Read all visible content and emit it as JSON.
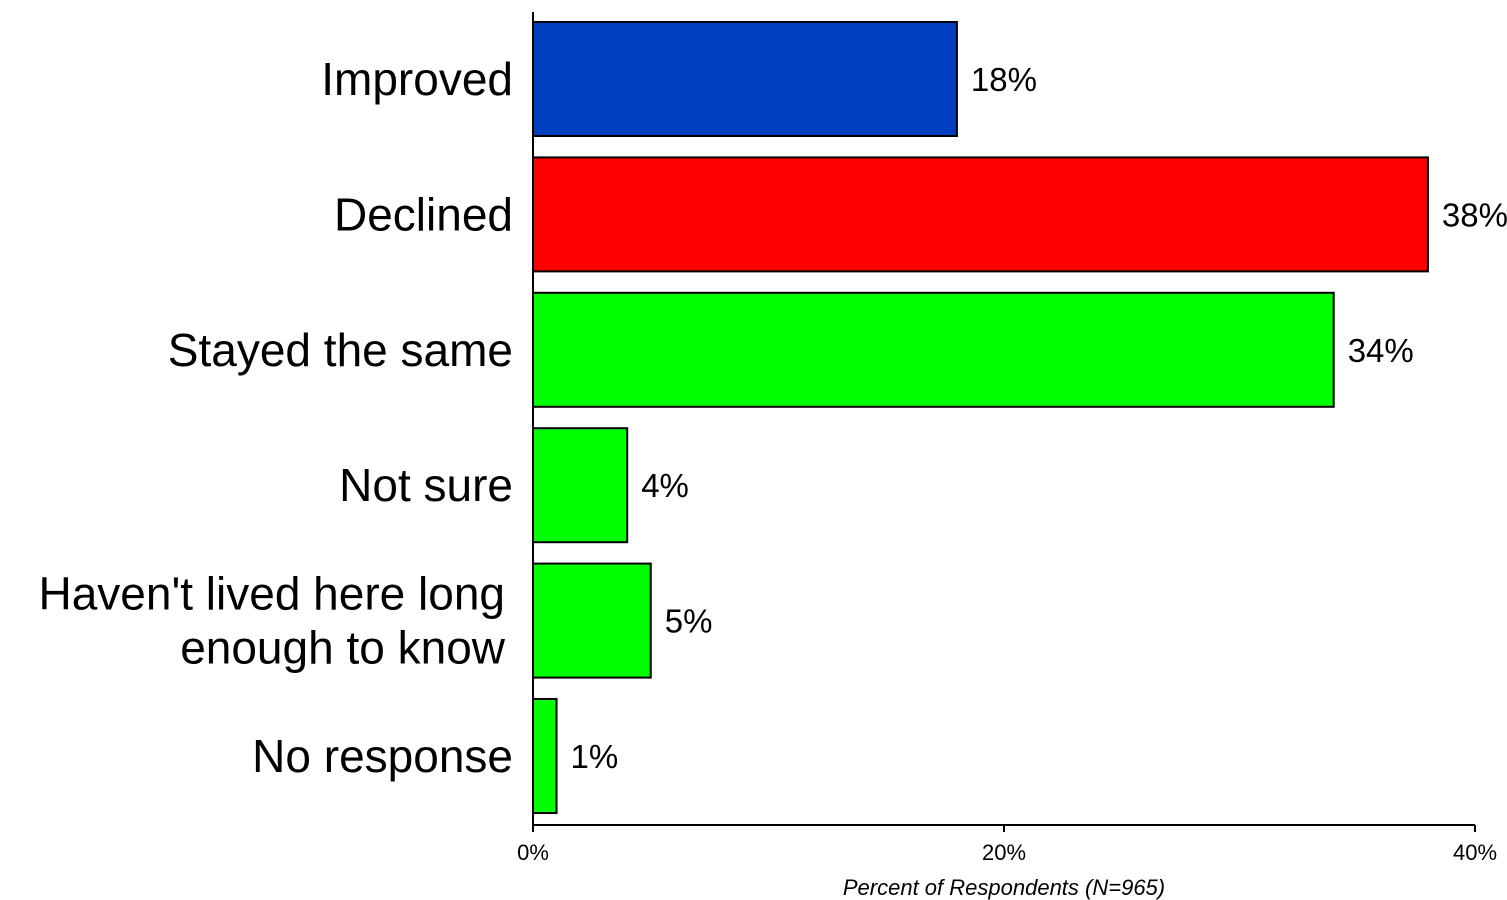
{
  "chart_data": {
    "type": "bar",
    "orientation": "horizontal",
    "categories": [
      [
        "Improved"
      ],
      [
        "Declined"
      ],
      [
        "Stayed the same"
      ],
      [
        "Not sure"
      ],
      [
        "Haven't lived here long",
        "enough to know"
      ],
      [
        "No response"
      ]
    ],
    "values": [
      18,
      38,
      34,
      4,
      5,
      1
    ],
    "value_labels": [
      "18%",
      "38%",
      "34%",
      "4%",
      "5%",
      "1%"
    ],
    "colors": [
      "#0040c0",
      "#ff0000",
      "#00ff00",
      "#00ff00",
      "#00ff00",
      "#00ff00"
    ],
    "xlim": [
      0,
      40
    ],
    "x_ticks": [
      0,
      20,
      40
    ],
    "x_tick_labels": [
      "0%",
      "20%",
      "40%"
    ],
    "xlabel": "Percent of Respondents (N=965)",
    "title": "",
    "grid": false,
    "legend": "none"
  }
}
